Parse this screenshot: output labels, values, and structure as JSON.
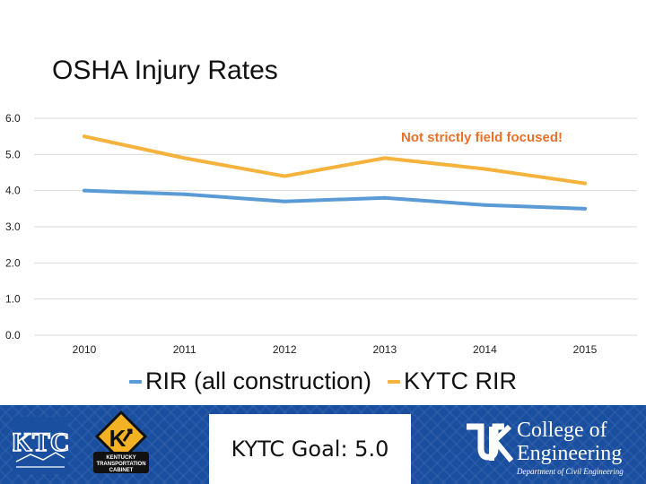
{
  "slide": {
    "title": "OSHA Injury Rates",
    "annotation": "Not strictly field focused!"
  },
  "chart_data": {
    "type": "line",
    "title": "OSHA Injury Rates",
    "categories": [
      "2010",
      "2011",
      "2012",
      "2013",
      "2014",
      "2015"
    ],
    "series": [
      {
        "name": "RIR (all construction)",
        "color": "#5b9bd5",
        "values": [
          4.0,
          3.9,
          3.7,
          3.8,
          3.6,
          3.5
        ]
      },
      {
        "name": "KYTC RIR",
        "color": "#f5b23c",
        "values": [
          5.5,
          4.9,
          4.4,
          4.9,
          4.6,
          4.2
        ]
      }
    ],
    "ylim": [
      0,
      6
    ],
    "yticks": [
      "0.0",
      "1.0",
      "2.0",
      "3.0",
      "4.0",
      "5.0",
      "6.0"
    ],
    "grid": true,
    "legend": "bottom"
  },
  "footer": {
    "goal": "KYTC Goal: 5.0",
    "ktc_logo": "KTC",
    "kytc_sign": "K",
    "kytc_caption_1": "KENTUCKY",
    "kytc_caption_2": "TRANSPORTATION",
    "kytc_caption_3": "CABINET",
    "uk_college": "College of",
    "uk_engineering": "Engineering",
    "uk_department": "Department of Civil Engineering",
    "brand_color": "#1a4fa0"
  }
}
